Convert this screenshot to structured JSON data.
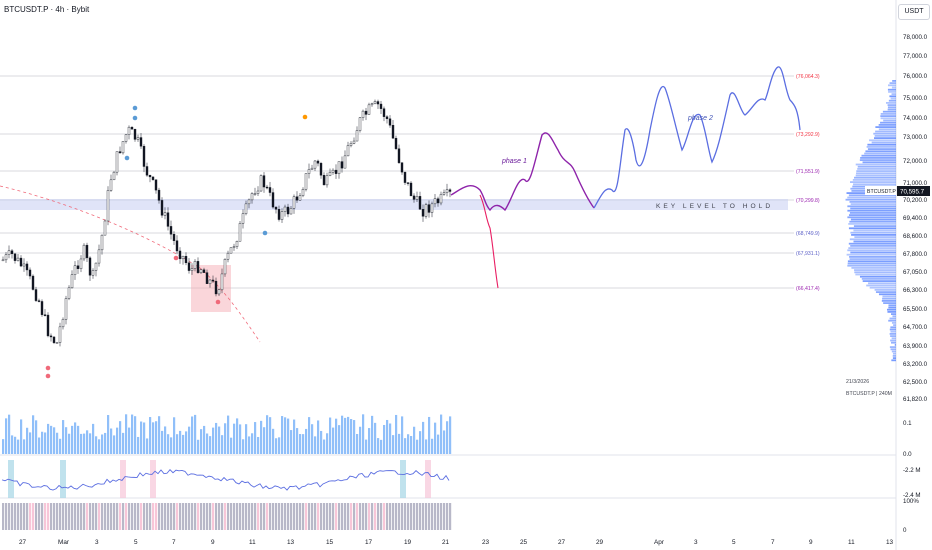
{
  "header": {
    "title": "BTCUSDT.P · 4h · Bybit",
    "currency_button": "USDT"
  },
  "price_axis": {
    "labels": [
      "78,000.0",
      "77,000.0",
      "76,000.0",
      "75,000.0",
      "74,000.0",
      "73,000.0",
      "72,000.0",
      "71,000.0",
      "70,200.0",
      "69,400.0",
      "68,600.0",
      "67,800.0",
      "67,050.0",
      "66,300.0",
      "65,500.0",
      "64,700.0",
      "63,900.0",
      "63,200.0",
      "62,500.0",
      "61,820.0"
    ],
    "current_price": "70,595.7",
    "current_symbol": "BTCUSDT.P",
    "date_note": "21/3/2026",
    "symbol_note": "BTCUSDT.P | 240M"
  },
  "levels": [
    {
      "label": "(76,064.3)",
      "color": "#f23645"
    },
    {
      "label": "(73,292.9)",
      "color": "#f23645"
    },
    {
      "label": "(71,551.9)",
      "color": "#9c27b0"
    },
    {
      "label": "(70,299.8)",
      "color": "#9c27b0"
    },
    {
      "label": "(68,749.9)",
      "color": "#5b5fc7"
    },
    {
      "label": "(67,931.1)",
      "color": "#5b5fc7"
    },
    {
      "label": "(66,417.4)",
      "color": "#9c27b0"
    }
  ],
  "annotations": {
    "key_level": "KEY LEVEL TO HOLD",
    "phase1": "phase 1",
    "phase2": "phase 2"
  },
  "volume_axis": [
    "0.1",
    "0.0"
  ],
  "indicator_axis": [
    "-2.2 M",
    "-2.4 M",
    "100%",
    "0"
  ],
  "time_axis": [
    "27",
    "Mar",
    "3",
    "5",
    "7",
    "9",
    "11",
    "13",
    "15",
    "17",
    "19",
    "21",
    "23",
    "25",
    "27",
    "29",
    "Apr",
    "3",
    "5",
    "7",
    "9",
    "11",
    "13"
  ],
  "colors": {
    "up": "#26a69a",
    "down": "#ef5350",
    "volume": "#90bff9",
    "profile": "#2962ff",
    "phase1": "#8e24aa",
    "phase2": "#5b6ee1",
    "drop": "#e91e63"
  }
}
